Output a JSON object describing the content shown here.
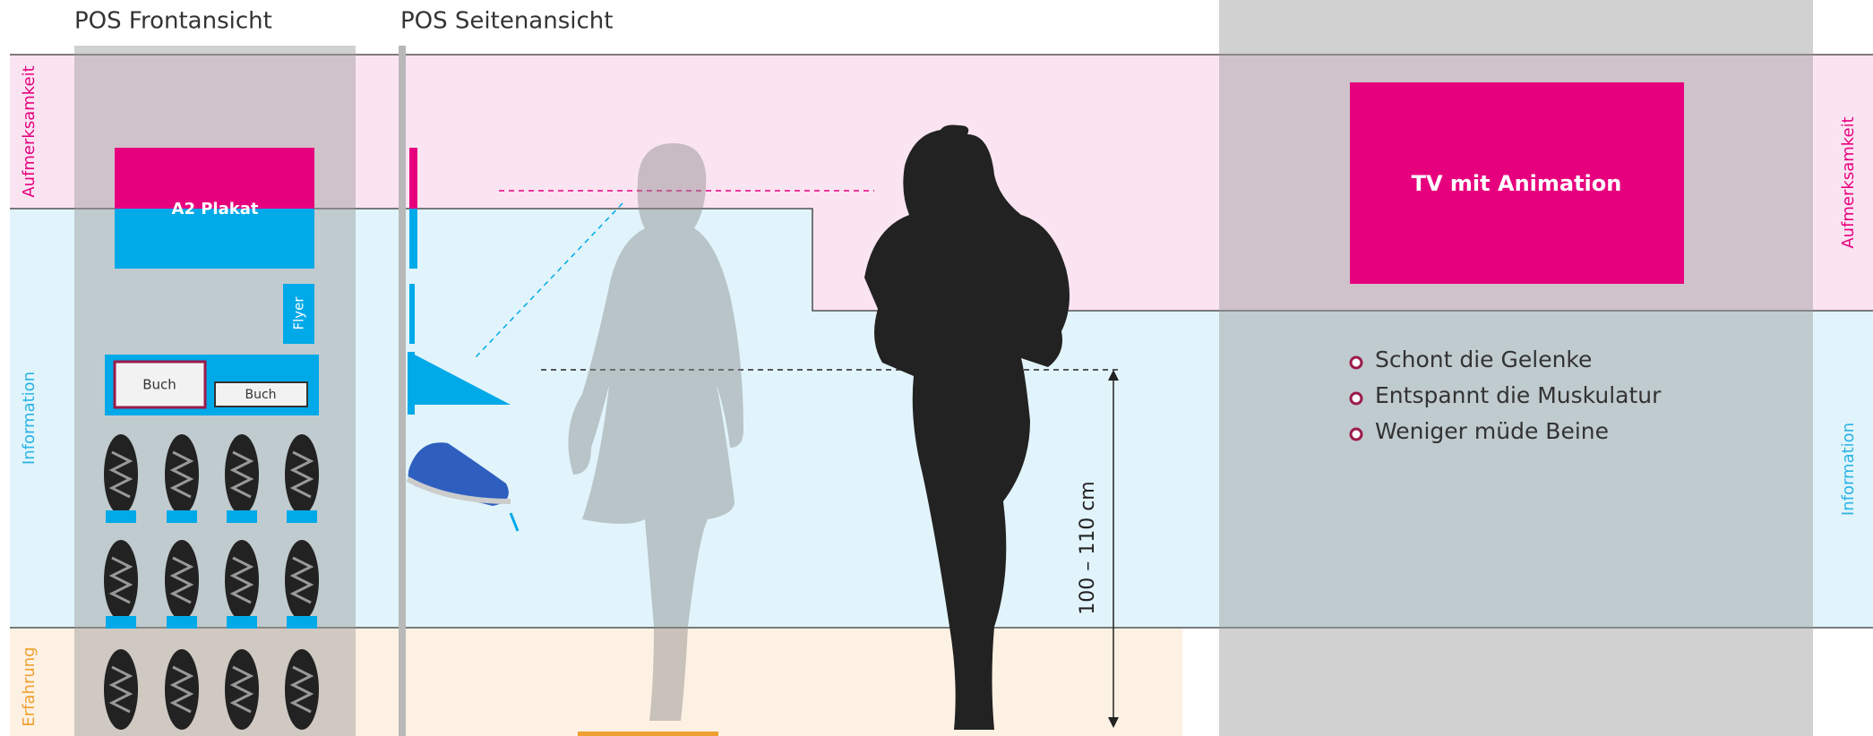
{
  "header": {
    "front_title": "POS Frontansicht",
    "side_title": "POS Seitenansicht"
  },
  "zones": {
    "attention": "Aufmerksamkeit",
    "information": "Information",
    "experience": "Erfahrung"
  },
  "front": {
    "poster": "A2 Plakat",
    "flyer": "Flyer",
    "book_1": "Buch",
    "book_2": "Buch"
  },
  "tv": {
    "label": "TV mit Animation"
  },
  "benefits": [
    "Schont die Gelenke",
    "Entspannt die Muskulatur",
    "Weniger müde Beine"
  ],
  "dimension": {
    "label": "100 – 110 cm"
  }
}
